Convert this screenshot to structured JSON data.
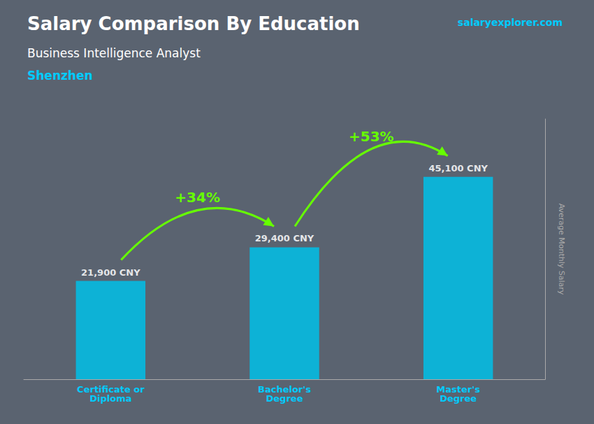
{
  "chart_data": {
    "type": "bar",
    "title": "Salary Comparison By Education",
    "subtitle": [
      "Business Intelligence Analyst",
      "Shenzhen"
    ],
    "watermark": "salaryexplorer.com",
    "ylabel": "Average Monthly Salary",
    "categories": [
      "Certificate or\nDiploma",
      "Bachelor's\nDegree",
      "Master's\nDegree"
    ],
    "values": [
      21900,
      29400,
      45100
    ],
    "value_labels": [
      "21,900 CNY",
      "29,400 CNY",
      "45,100 CNY"
    ],
    "data_labels": true,
    "annotations": [
      "+34%",
      "+53%"
    ],
    "color": "#00c0e8",
    "ylim": [
      0,
      58000
    ],
    "tick_labels": "x",
    "grid": false
  }
}
